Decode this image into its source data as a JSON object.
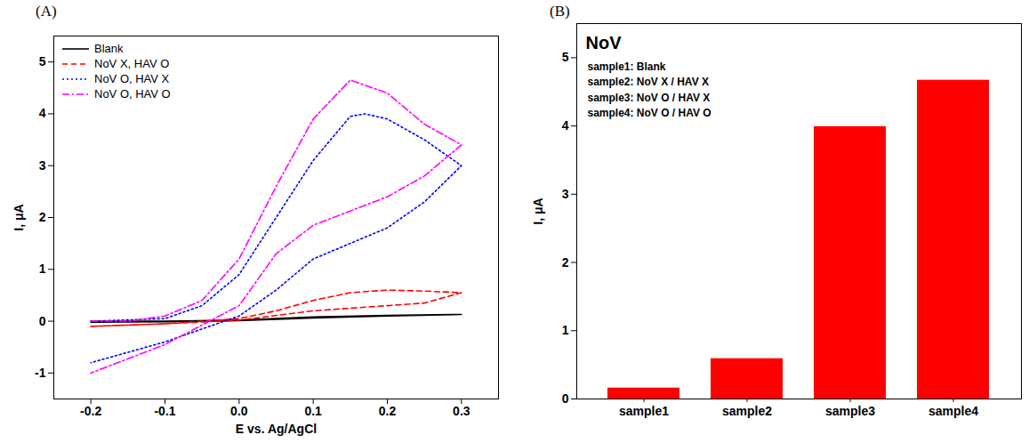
{
  "chart_data": [
    {
      "type": "line",
      "title": "(A)",
      "xlabel": "E vs. Ag/AgCl",
      "ylabel": "I, μA",
      "xlim": [
        -0.25,
        0.35
      ],
      "xticks": [
        -0.2,
        -0.1,
        {
          "value": 0,
          "label": "0.0"
        },
        0.1,
        0.2,
        0.3
      ],
      "ylim": [
        -1.5,
        5.5
      ],
      "yticks": [
        -1,
        0,
        1,
        2,
        3,
        4,
        5
      ],
      "grid": false,
      "legend": "upper left",
      "series": [
        {
          "name": "Blank",
          "color": "#000000",
          "line_style": "solid",
          "x": [
            -0.2,
            -0.1,
            0,
            0.1,
            0.2,
            0.3,
            0.2,
            0.1,
            0,
            -0.1,
            -0.2
          ],
          "values": [
            0,
            0,
            0.02,
            0.08,
            0.11,
            0.13,
            0.1,
            0.06,
            0.01,
            -0.01,
            -0.02
          ]
        },
        {
          "name": "NoV X, HAV O",
          "color": "#ff0000",
          "line_style": "dashed",
          "x": [
            -0.2,
            -0.1,
            0,
            0.05,
            0.1,
            0.15,
            0.2,
            0.25,
            0.3,
            0.25,
            0.2,
            0.1,
            0,
            -0.1,
            -0.2
          ],
          "values": [
            -0.1,
            -0.05,
            0.05,
            0.2,
            0.4,
            0.55,
            0.6,
            0.58,
            0.55,
            0.35,
            0.3,
            0.2,
            0.02,
            -0.05,
            -0.1
          ]
        },
        {
          "name": "NoV O, HAV X",
          "color": "#0000ff",
          "line_style": "dotted",
          "x": [
            -0.2,
            -0.1,
            -0.05,
            0,
            0.05,
            0.1,
            0.15,
            0.17,
            0.2,
            0.25,
            0.3,
            0.25,
            0.2,
            0.1,
            0.05,
            0,
            -0.1,
            -0.2
          ],
          "values": [
            0,
            0.05,
            0.3,
            0.9,
            2.0,
            3.1,
            3.95,
            4.0,
            3.9,
            3.5,
            3.0,
            2.3,
            1.8,
            1.2,
            0.6,
            0.1,
            -0.4,
            -0.8
          ]
        },
        {
          "name": "NoV O, HAV O",
          "color": "#ff00ff",
          "line_style": "dashdot",
          "x": [
            -0.2,
            -0.15,
            -0.1,
            -0.05,
            0,
            0.05,
            0.1,
            0.15,
            0.2,
            0.25,
            0.3,
            0.25,
            0.2,
            0.1,
            0.05,
            0,
            -0.1,
            -0.2
          ],
          "values": [
            0,
            0,
            0.1,
            0.4,
            1.2,
            2.6,
            3.9,
            4.65,
            4.4,
            3.8,
            3.4,
            2.8,
            2.4,
            1.85,
            1.3,
            0.3,
            -0.45,
            -1.0
          ]
        }
      ]
    },
    {
      "type": "bar",
      "title": "(B)",
      "subtitle": "NoV",
      "annotations": [
        "sample1: Blank",
        "sample2: NoV X / HAV X",
        "sample3: NoV O / HAV X",
        "sample4: NoV O / HAV O"
      ],
      "ylabel": "I, μA",
      "categories": [
        "sample1",
        "sample2",
        "sample3",
        "sample4"
      ],
      "values": [
        0.16,
        0.59,
        3.99,
        4.67
      ],
      "color": "#ff0000",
      "ylim": [
        0,
        5.5
      ],
      "yticks": [
        0,
        1,
        2,
        3,
        4,
        5
      ],
      "grid": false
    }
  ]
}
